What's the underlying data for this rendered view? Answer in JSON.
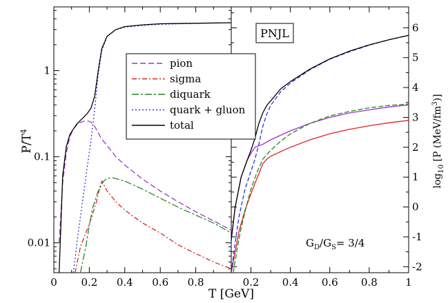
{
  "chart_data": [
    {
      "type": "line",
      "panel": "left",
      "xlabel": "",
      "ylabel": "P/T",
      "ylabel_sup": "4",
      "xlim": [
        0,
        1.0
      ],
      "ylim": [
        0.0045,
        5.5
      ],
      "y_log_scale": true,
      "x_ticks": [
        "0",
        "0.2",
        "0.4",
        "0.6",
        "0.8"
      ],
      "x_tick_values": [
        0,
        0.2,
        0.4,
        0.6,
        0.8
      ],
      "y_ticks": [
        "0.01",
        "0.1",
        "1"
      ],
      "y_tick_values": [
        0.01,
        0.1,
        1
      ],
      "legend_position": "center-right",
      "series": [
        {
          "name": "pion",
          "color": "#9933cc",
          "dash": "8,4",
          "x": [
            0.03,
            0.05,
            0.07,
            0.09,
            0.11,
            0.13,
            0.15,
            0.17,
            0.19,
            0.2,
            0.21,
            0.23,
            0.25,
            0.27,
            0.3,
            0.35,
            0.4,
            0.5,
            0.6,
            0.7,
            0.8,
            0.9,
            1.0
          ],
          "y": [
            0.01,
            0.05,
            0.11,
            0.17,
            0.21,
            0.235,
            0.25,
            0.258,
            0.26,
            0.258,
            0.25,
            0.225,
            0.19,
            0.16,
            0.135,
            0.1,
            0.08,
            0.055,
            0.04,
            0.03,
            0.023,
            0.018,
            0.014
          ]
        },
        {
          "name": "sigma",
          "color": "#e02020",
          "dash": "7,3,2,3",
          "x": [
            0.12,
            0.15,
            0.18,
            0.21,
            0.24,
            0.26,
            0.27,
            0.28,
            0.3,
            0.35,
            0.4,
            0.5,
            0.6,
            0.7,
            0.8,
            0.9,
            1.0
          ],
          "y": [
            0.0045,
            0.009,
            0.013,
            0.019,
            0.03,
            0.045,
            0.052,
            0.048,
            0.04,
            0.03,
            0.024,
            0.017,
            0.013,
            0.0095,
            0.0075,
            0.006,
            0.005
          ]
        },
        {
          "name": "diquark",
          "color": "#228822",
          "dash": "10,3,3,3",
          "x": [
            0.15,
            0.18,
            0.2,
            0.22,
            0.25,
            0.28,
            0.3,
            0.33,
            0.36,
            0.4,
            0.5,
            0.6,
            0.7,
            0.8,
            0.9,
            1.0
          ],
          "y": [
            0.0045,
            0.009,
            0.016,
            0.026,
            0.04,
            0.052,
            0.056,
            0.057,
            0.055,
            0.052,
            0.042,
            0.033,
            0.026,
            0.021,
            0.017,
            0.013
          ]
        },
        {
          "name": "quark + gluon",
          "color": "#2233dd",
          "dash": "2,3",
          "x": [
            0.11,
            0.13,
            0.15,
            0.17,
            0.19,
            0.21,
            0.23,
            0.25,
            0.27,
            0.3,
            0.35,
            0.4,
            0.5,
            0.6,
            0.8,
            1.0
          ],
          "y": [
            0.0045,
            0.01,
            0.02,
            0.04,
            0.08,
            0.16,
            0.35,
            0.9,
            1.7,
            2.5,
            3.0,
            3.2,
            3.35,
            3.45,
            3.55,
            3.6
          ]
        },
        {
          "name": "total",
          "color": "#000000",
          "dash": "",
          "x": [
            0.03,
            0.05,
            0.07,
            0.09,
            0.11,
            0.13,
            0.15,
            0.17,
            0.19,
            0.21,
            0.23,
            0.25,
            0.27,
            0.3,
            0.35,
            0.4,
            0.5,
            0.6,
            0.8,
            1.0
          ],
          "y": [
            0.0045,
            0.06,
            0.13,
            0.18,
            0.21,
            0.24,
            0.265,
            0.29,
            0.32,
            0.37,
            0.5,
            1.0,
            1.8,
            2.5,
            3.0,
            3.25,
            3.4,
            3.5,
            3.55,
            3.6
          ]
        }
      ]
    },
    {
      "type": "line",
      "panel": "right",
      "title": "PNJL",
      "annotation": "G_D/G_S= 3/4",
      "xlabel": "T [GeV]",
      "ylabel": "log10 [P (MeV/fm3)]",
      "xlim": [
        0.1,
        1.0
      ],
      "ylim": [
        -2.2,
        6.7
      ],
      "x_ticks": [
        "0.2",
        "0.4",
        "0.6",
        "0.8",
        "1"
      ],
      "x_tick_values": [
        0.2,
        0.4,
        0.6,
        0.8,
        1.0
      ],
      "y_ticks": [
        "-2",
        "-1",
        "0",
        "1",
        "2",
        "3",
        "4",
        "5",
        "6"
      ],
      "y_tick_values": [
        -2,
        -1,
        0,
        1,
        2,
        3,
        4,
        5,
        6
      ],
      "series": [
        {
          "name": "pion",
          "color": "#9933cc",
          "dash": "",
          "x": [
            0.09,
            0.1,
            0.12,
            0.15,
            0.18,
            0.2,
            0.22,
            0.24,
            0.26,
            0.3,
            0.4,
            0.5,
            0.6,
            0.7,
            0.8,
            0.9,
            1.0
          ],
          "y": [
            -2.2,
            -1.1,
            0.0,
            1.0,
            1.55,
            1.8,
            2.0,
            2.05,
            2.1,
            2.25,
            2.55,
            2.8,
            3.0,
            3.15,
            3.25,
            3.35,
            3.42
          ]
        },
        {
          "name": "sigma",
          "color": "#e02020",
          "dash": "",
          "x": [
            0.1,
            0.12,
            0.14,
            0.17,
            0.2,
            0.23,
            0.26,
            0.28,
            0.3,
            0.35,
            0.4,
            0.5,
            0.6,
            0.7,
            0.8,
            0.9,
            1.0
          ],
          "y": [
            -2.2,
            -1.5,
            -0.8,
            -0.1,
            0.45,
            0.95,
            1.45,
            1.6,
            1.7,
            1.85,
            2.0,
            2.25,
            2.45,
            2.6,
            2.72,
            2.82,
            2.9
          ]
        },
        {
          "name": "diquark",
          "color": "#228822",
          "dash": "7,3",
          "x": [
            0.11,
            0.13,
            0.15,
            0.18,
            0.2,
            0.23,
            0.26,
            0.28,
            0.3,
            0.35,
            0.4,
            0.5,
            0.6,
            0.7,
            0.8,
            0.9,
            1.0
          ],
          "y": [
            -2.2,
            -1.4,
            -0.7,
            0.1,
            0.6,
            1.15,
            1.6,
            1.75,
            1.9,
            2.2,
            2.45,
            2.8,
            3.05,
            3.2,
            3.32,
            3.4,
            3.45
          ]
        },
        {
          "name": "quark + gluon",
          "color": "#2233dd",
          "dash": "6,3",
          "x": [
            0.1,
            0.12,
            0.14,
            0.17,
            0.2,
            0.22,
            0.24,
            0.26,
            0.28,
            0.3,
            0.35,
            0.4,
            0.5,
            0.6,
            0.7,
            0.8,
            0.9,
            1.0
          ],
          "y": [
            -2.2,
            -1.2,
            -0.3,
            0.6,
            1.2,
            1.6,
            2.1,
            2.7,
            3.1,
            3.4,
            3.85,
            4.15,
            4.6,
            4.95,
            5.2,
            5.42,
            5.6,
            5.75
          ]
        },
        {
          "name": "total",
          "color": "#000000",
          "dash": "",
          "x": [
            0.09,
            0.1,
            0.12,
            0.15,
            0.18,
            0.2,
            0.22,
            0.24,
            0.26,
            0.28,
            0.3,
            0.35,
            0.4,
            0.5,
            0.6,
            0.7,
            0.8,
            0.9,
            1.0
          ],
          "y": [
            -2.2,
            -1.1,
            0.0,
            1.0,
            1.55,
            1.9,
            2.3,
            2.8,
            3.15,
            3.4,
            3.55,
            3.95,
            4.2,
            4.62,
            4.96,
            5.22,
            5.43,
            5.6,
            5.75
          ]
        }
      ]
    }
  ]
}
